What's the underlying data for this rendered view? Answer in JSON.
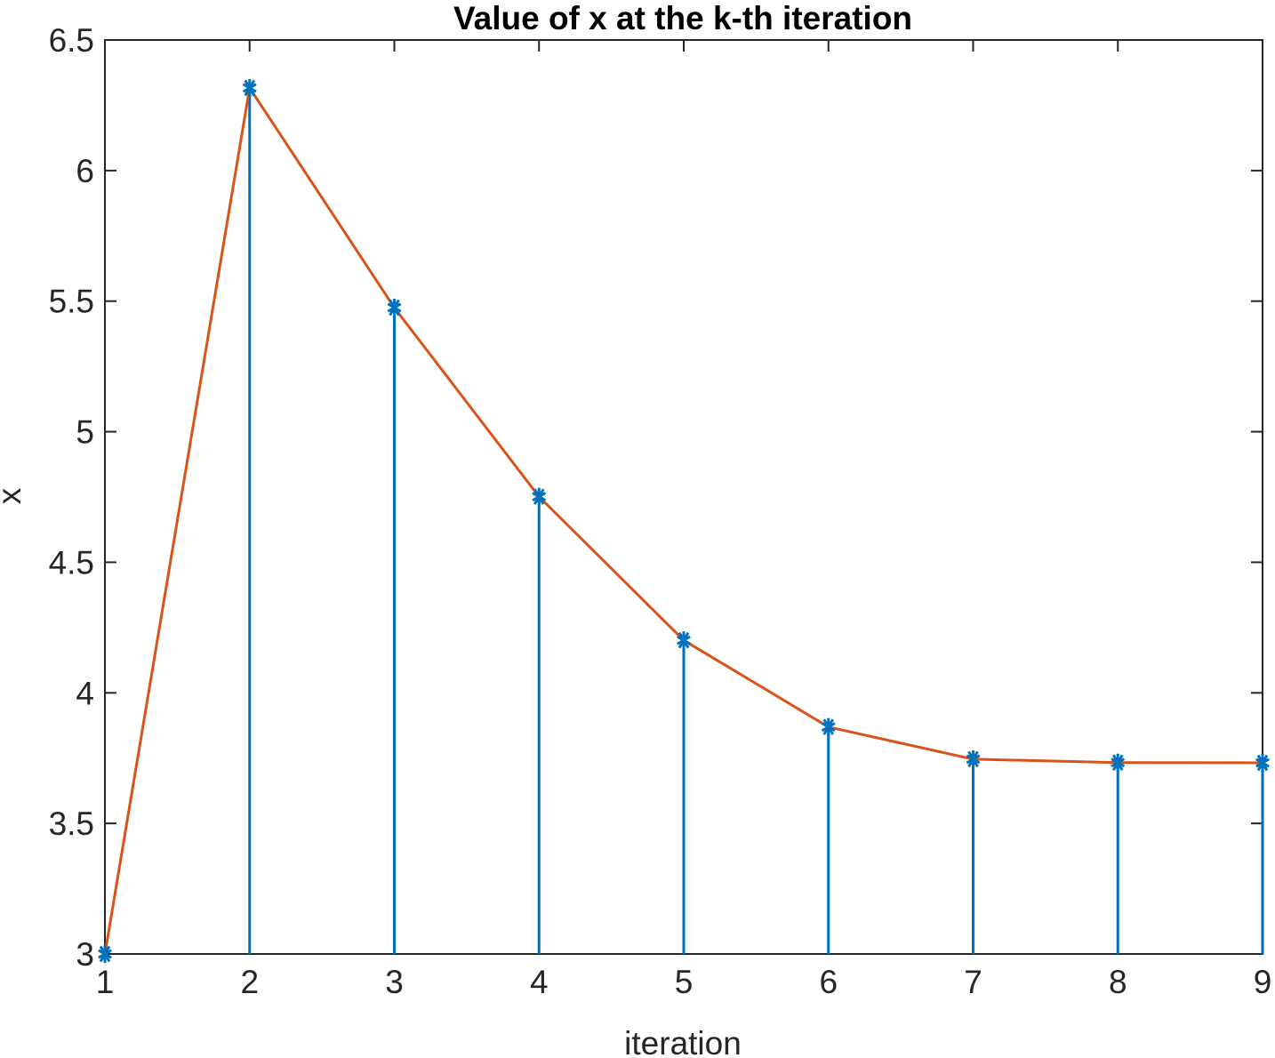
{
  "chart_data": {
    "type": "line",
    "title": "Value of x at the k-th iteration",
    "xlabel": "iteration",
    "ylabel": "x",
    "xlim": [
      1,
      9
    ],
    "ylim": [
      3,
      6.5
    ],
    "xticks": [
      "1",
      "2",
      "3",
      "4",
      "5",
      "6",
      "7",
      "8",
      "9"
    ],
    "yticks": [
      "3",
      "3.5",
      "4",
      "4.5",
      "5",
      "5.5",
      "6",
      "6.5"
    ],
    "grid": false,
    "series": [
      {
        "kind": "stem",
        "marker": "asterisk",
        "color": "#0072BD",
        "x": [
          1,
          2,
          3,
          4,
          5,
          6,
          7,
          8,
          9
        ],
        "y": [
          3.0,
          6.3166,
          5.4751,
          4.7512,
          4.2012,
          3.8693,
          3.7459,
          3.733,
          3.7321
        ]
      },
      {
        "kind": "line",
        "color": "#D95319",
        "x": [
          1,
          2,
          3,
          4,
          5,
          6,
          7,
          8,
          9
        ],
        "y": [
          3.0,
          6.3166,
          5.4751,
          4.7512,
          4.2012,
          3.8693,
          3.7459,
          3.733,
          3.7321
        ]
      }
    ]
  }
}
